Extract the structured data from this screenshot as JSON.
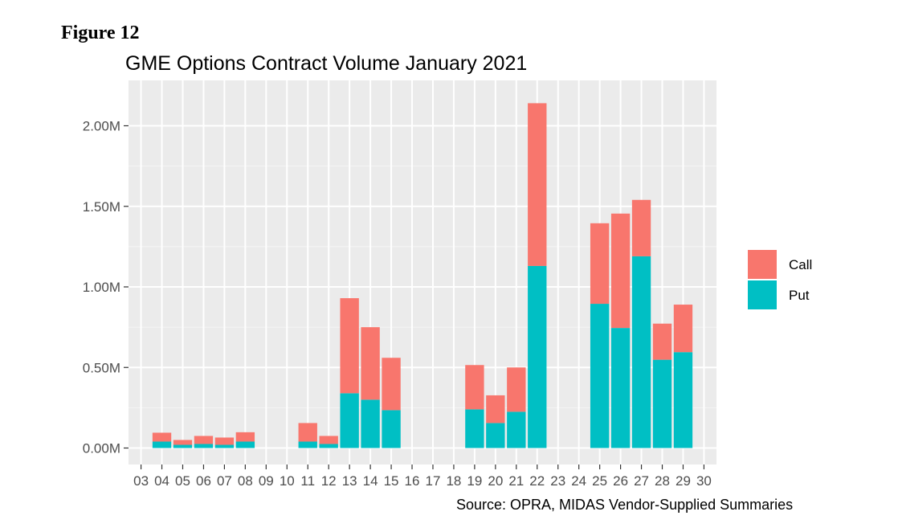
{
  "figure_label": "Figure 12",
  "source_note": "Source: OPRA, MIDAS Vendor-Supplied Summaries",
  "chart_data": {
    "type": "bar",
    "stacked": true,
    "title": "GME Options Contract Volume January 2021",
    "xlabel": "",
    "ylabel": "",
    "categories": [
      "03",
      "04",
      "05",
      "06",
      "07",
      "08",
      "09",
      "10",
      "11",
      "12",
      "13",
      "14",
      "15",
      "16",
      "17",
      "18",
      "19",
      "20",
      "21",
      "22",
      "23",
      "24",
      "25",
      "26",
      "27",
      "28",
      "29",
      "30"
    ],
    "series": [
      {
        "name": "Put",
        "color": "#00BFC4",
        "values": [
          0,
          40000,
          20000,
          25000,
          20000,
          40000,
          0,
          0,
          40000,
          25000,
          340000,
          300000,
          235000,
          0,
          0,
          0,
          240000,
          155000,
          225000,
          1130000,
          0,
          0,
          895000,
          745000,
          1190000,
          548000,
          595000,
          0
        ]
      },
      {
        "name": "Call",
        "color": "#F8766D",
        "values": [
          0,
          55000,
          30000,
          50000,
          45000,
          58000,
          0,
          0,
          115000,
          50000,
          590000,
          450000,
          325000,
          0,
          0,
          0,
          275000,
          172000,
          275000,
          1010000,
          0,
          0,
          500000,
          710000,
          350000,
          224000,
          295000,
          0
        ]
      }
    ],
    "legend_order": [
      "Call",
      "Put"
    ],
    "legend_position": "right",
    "ylim": [
      0,
      2200000
    ],
    "yticks": [
      0,
      500000,
      1000000,
      1500000,
      2000000
    ],
    "ytick_labels": [
      "0.00M",
      "0.50M",
      "1.00M",
      "1.50M",
      "2.00M"
    ],
    "grid": true
  }
}
